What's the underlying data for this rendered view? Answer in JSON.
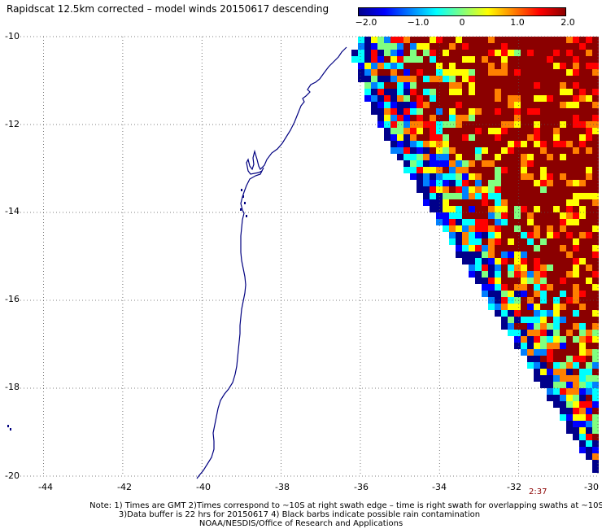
{
  "title": "Rapidscat 12.5km corrected – model winds 20150617 descending",
  "colorbar": {
    "labels": [
      "−2.0",
      "−1.0",
      "0",
      "1.0",
      "2.0"
    ],
    "values": [
      -2.0,
      -1.0,
      0,
      1.0,
      2.0
    ],
    "colors": [
      "#00008b",
      "#0000ff",
      "#0080ff",
      "#00ffff",
      "#80ff80",
      "#ffff00",
      "#ff8000",
      "#ff0000",
      "#8b0000"
    ]
  },
  "axes": {
    "lon_labels": [
      "-44",
      "-42",
      "-40",
      "-38",
      "-36",
      "-34",
      "-32",
      "-30"
    ],
    "lon_values": [
      -44,
      -42,
      -40,
      -38,
      -36,
      -34,
      -32,
      -30
    ],
    "lat_labels": [
      "-10",
      "-12",
      "-14",
      "-16",
      "-18",
      "-20"
    ],
    "lat_values": [
      -10,
      -12,
      -14,
      -16,
      -18,
      -20
    ],
    "lon_range": [
      -45.1,
      -30
    ],
    "lat_range": [
      -20,
      -10
    ],
    "grid": true
  },
  "time_label": "2:37",
  "notes": [
    "Note: 1) Times are GMT 2)Times correspond to ~10S at right swath edge – time is right swath for overlapping swaths at ~10S",
    "3)Data buffer is 22 hrs for 20150617 4) Black barbs indicate possible rain contamination",
    "NOAA/NESDIS/Office of Research and Applications"
  ],
  "map_colors": {
    "coastline": "#000080",
    "grid": "#555555"
  }
}
